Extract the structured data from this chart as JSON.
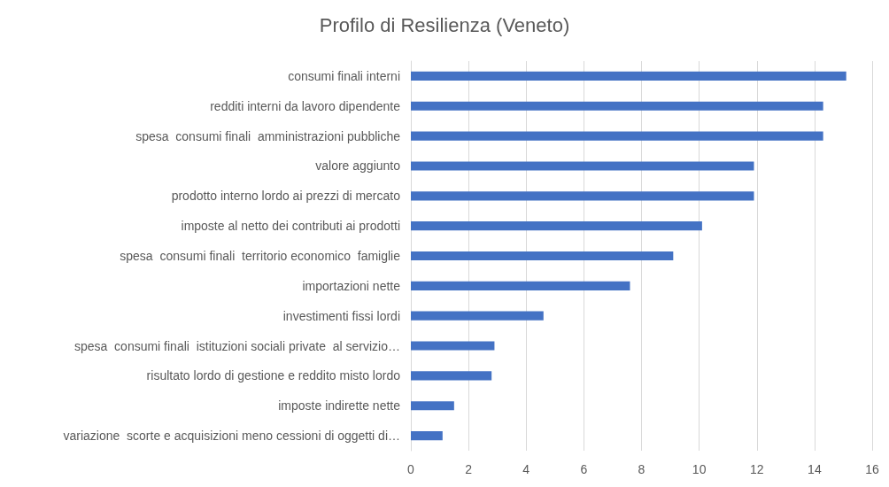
{
  "chart_data": {
    "type": "bar",
    "orientation": "horizontal",
    "title": "Profilo di Resilienza (Veneto)",
    "categories": [
      "consumi finali interni",
      "redditi interni da lavoro dipendente",
      "spesa  consumi finali  amministrazioni pubbliche",
      "valore aggiunto",
      "prodotto interno lordo ai prezzi di mercato",
      "imposte al netto dei contributi ai prodotti",
      "spesa  consumi finali  territorio economico  famiglie",
      "importazioni nette",
      "investimenti fissi lordi",
      "spesa  consumi finali  istituzioni sociali private  al servizio…",
      "risultato lordo di gestione e reddito misto lordo",
      "imposte indirette nette",
      "variazione  scorte e acquisizioni meno cessioni di oggetti di…"
    ],
    "values": [
      15.1,
      14.3,
      14.3,
      11.9,
      11.9,
      10.1,
      9.1,
      7.6,
      4.6,
      2.9,
      2.8,
      1.5,
      1.1
    ],
    "color": "#4472c4",
    "xlim": [
      0,
      16
    ],
    "xticks": [
      0,
      2,
      4,
      6,
      8,
      10,
      12,
      14,
      16
    ],
    "grid": "x"
  }
}
